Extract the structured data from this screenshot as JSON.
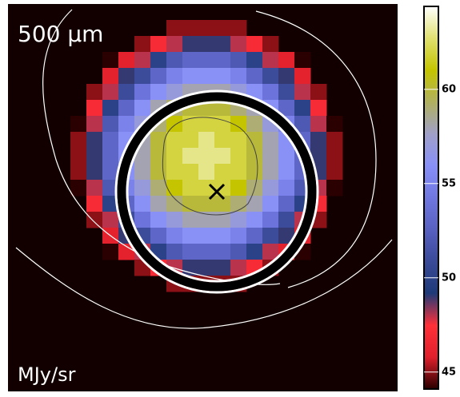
{
  "chart_data": {
    "type": "heatmap",
    "title": "500 μm",
    "colorbar_label": "MJy/sr",
    "values": [
      [
        null,
        null,
        null,
        null,
        null,
        null,
        45,
        45,
        45,
        45,
        45,
        null,
        null,
        null,
        null,
        null,
        null
      ],
      [
        null,
        null,
        null,
        null,
        45,
        47,
        48,
        49,
        49,
        49,
        48,
        47,
        45,
        null,
        null,
        null,
        null
      ],
      [
        null,
        null,
        43,
        46,
        48,
        50,
        52,
        53,
        53,
        53,
        52,
        50,
        48,
        46,
        43,
        null,
        null
      ],
      [
        null,
        null,
        46,
        49,
        51,
        53,
        55,
        56,
        56,
        56,
        55,
        53,
        51,
        49,
        46,
        null,
        null
      ],
      [
        null,
        45,
        48,
        51,
        54,
        56,
        57,
        58,
        58,
        58,
        57,
        56,
        54,
        51,
        48,
        45,
        null
      ],
      [
        null,
        47,
        50,
        53,
        56,
        58,
        59,
        60,
        60,
        60,
        59,
        58,
        56,
        53,
        50,
        47,
        null
      ],
      [
        44,
        48,
        52,
        55,
        57,
        59,
        61,
        62,
        62,
        62,
        61,
        59,
        57,
        55,
        52,
        48,
        44
      ],
      [
        45,
        49,
        53,
        56,
        58,
        60,
        62,
        62,
        63,
        62,
        62,
        60,
        58,
        56,
        53,
        49,
        45
      ],
      [
        45,
        49,
        53,
        56,
        58,
        60,
        62,
        63,
        63,
        63,
        62,
        60,
        58,
        56,
        53,
        49,
        45
      ],
      [
        45,
        49,
        53,
        56,
        58,
        60,
        62,
        62,
        63,
        62,
        62,
        60,
        58,
        56,
        53,
        49,
        45
      ],
      [
        44,
        48,
        52,
        55,
        57,
        59,
        61,
        62,
        62,
        62,
        61,
        59,
        57,
        55,
        52,
        48,
        44
      ],
      [
        null,
        47,
        50,
        53,
        56,
        58,
        59,
        60,
        60,
        60,
        59,
        58,
        56,
        53,
        50,
        47,
        null
      ],
      [
        null,
        45,
        48,
        51,
        54,
        56,
        57,
        58,
        58,
        58,
        57,
        56,
        54,
        51,
        48,
        45,
        null
      ],
      [
        null,
        null,
        46,
        49,
        51,
        53,
        55,
        56,
        56,
        56,
        55,
        53,
        51,
        49,
        46,
        null,
        null
      ],
      [
        null,
        null,
        43,
        46,
        48,
        50,
        52,
        53,
        53,
        53,
        52,
        50,
        48,
        46,
        43,
        null,
        null
      ],
      [
        null,
        null,
        null,
        null,
        45,
        47,
        48,
        49,
        49,
        49,
        48,
        47,
        45,
        null,
        null,
        null,
        null
      ],
      [
        null,
        null,
        null,
        null,
        null,
        null,
        45,
        45,
        45,
        45,
        45,
        null,
        null,
        null,
        null,
        null,
        null
      ]
    ],
    "clim": [
      44.1,
      64.4
    ],
    "cticks": [
      45,
      50,
      55,
      60
    ],
    "colormap": [
      "#2a0000",
      "#e0202c",
      "#ff3038",
      "#1e3a78",
      "#3a4a98",
      "#5860c0",
      "#7078e0",
      "#8890f8",
      "#a0a0c8",
      "#b0b060",
      "#c4c400",
      "#e0e070",
      "#ffffff"
    ]
  }
}
